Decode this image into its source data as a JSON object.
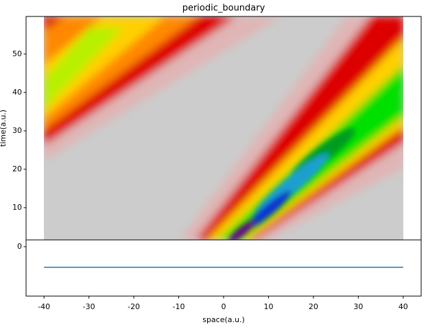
{
  "chart_data": [
    {
      "type": "contour",
      "title": "periodic_boundary",
      "y_label": "time(a.u.)",
      "xlim": [
        -44,
        44
      ],
      "ylim": [
        1.6,
        59.8
      ],
      "yticks": [
        10,
        20,
        30,
        40,
        50
      ]
    },
    {
      "type": "line",
      "x_label": "space(a.u.)",
      "x": [
        -40,
        40
      ],
      "series": [
        {
          "color": "#1f77b4",
          "values": [
            -1,
            -1
          ]
        }
      ],
      "xlim": [
        -44,
        44
      ],
      "xticks": [
        -40,
        -30,
        -20,
        -10,
        0,
        10,
        20,
        30,
        40
      ],
      "ylim": [
        -2.4,
        0.33
      ],
      "yticks": [
        0
      ]
    }
  ]
}
